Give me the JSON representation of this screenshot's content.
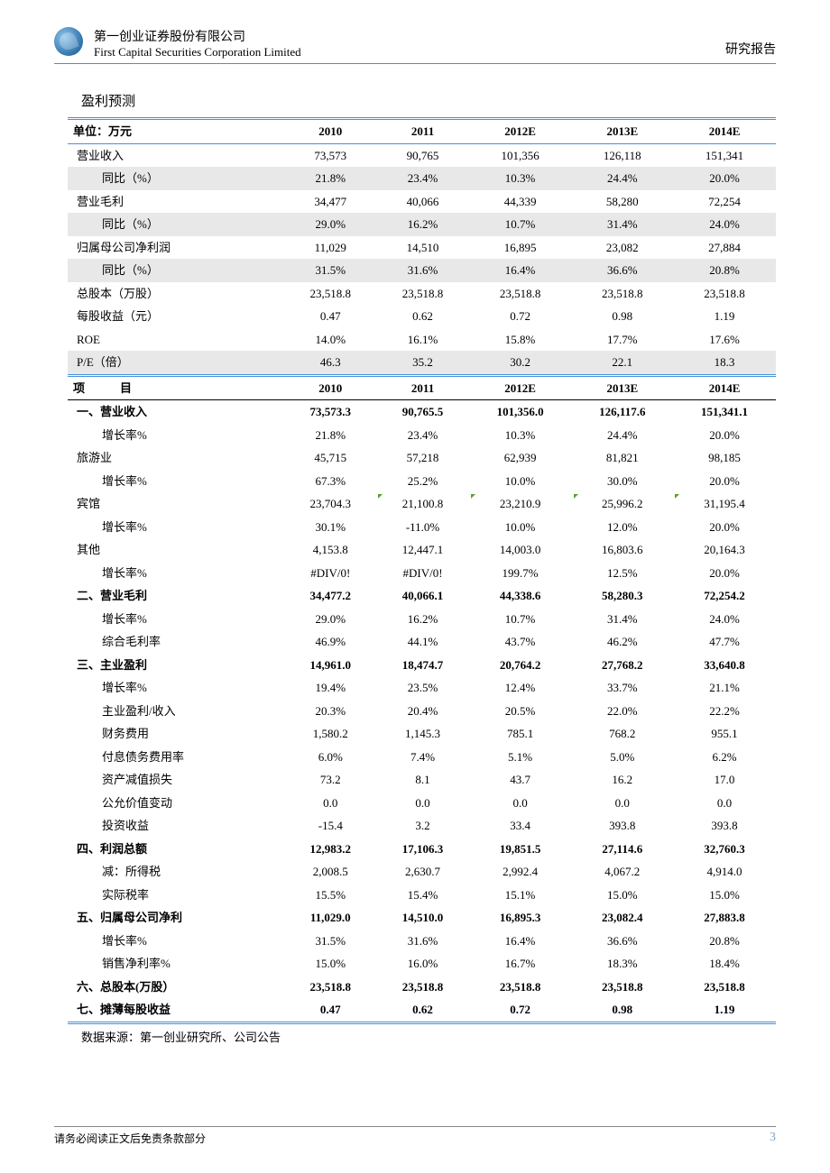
{
  "header": {
    "company_cn": "第一创业证券股份有限公司",
    "company_en": "First Capital Securities Corporation Limited",
    "report_label": "研究报告"
  },
  "section_title": "盈利预测",
  "years": [
    "2010",
    "2011",
    "2012E",
    "2013E",
    "2014E"
  ],
  "unit_label": "单位：万元",
  "item_label": "项　　　目",
  "t1_rows": [
    {
      "label": "营业收入",
      "vals": [
        "73,573",
        "90,765",
        "101,356",
        "126,118",
        "151,341"
      ],
      "shade": false,
      "indent": false
    },
    {
      "label": "同比（%）",
      "vals": [
        "21.8%",
        "23.4%",
        "10.3%",
        "24.4%",
        "20.0%"
      ],
      "shade": true,
      "indent": true
    },
    {
      "label": "营业毛利",
      "vals": [
        "34,477",
        "40,066",
        "44,339",
        "58,280",
        "72,254"
      ],
      "shade": false,
      "indent": false
    },
    {
      "label": "同比（%）",
      "vals": [
        "29.0%",
        "16.2%",
        "10.7%",
        "31.4%",
        "24.0%"
      ],
      "shade": true,
      "indent": true
    },
    {
      "label": "归属母公司净利润",
      "vals": [
        "11,029",
        "14,510",
        "16,895",
        "23,082",
        "27,884"
      ],
      "shade": false,
      "indent": false
    },
    {
      "label": "同比（%）",
      "vals": [
        "31.5%",
        "31.6%",
        "16.4%",
        "36.6%",
        "20.8%"
      ],
      "shade": true,
      "indent": true
    },
    {
      "label": "总股本（万股）",
      "vals": [
        "23,518.8",
        "23,518.8",
        "23,518.8",
        "23,518.8",
        "23,518.8"
      ],
      "shade": false,
      "indent": false
    },
    {
      "label": "每股收益（元）",
      "vals": [
        "0.47",
        "0.62",
        "0.72",
        "0.98",
        "1.19"
      ],
      "shade": false,
      "indent": false
    },
    {
      "label": "ROE",
      "vals": [
        "14.0%",
        "16.1%",
        "15.8%",
        "17.7%",
        "17.6%"
      ],
      "shade": false,
      "indent": false
    },
    {
      "label": "P/E（倍）",
      "vals": [
        "46.3",
        "35.2",
        "30.2",
        "22.1",
        "18.3"
      ],
      "shade": true,
      "indent": false
    }
  ],
  "t2_rows": [
    {
      "label": "一、营业收入",
      "vals": [
        "73,573.3",
        "90,765.5",
        "101,356.0",
        "126,117.6",
        "151,341.1"
      ],
      "bold": true,
      "indent": false
    },
    {
      "label": "增长率%",
      "vals": [
        "21.8%",
        "23.4%",
        "10.3%",
        "24.4%",
        "20.0%"
      ],
      "bold": false,
      "indent": true
    },
    {
      "label": "旅游业",
      "vals": [
        "45,715",
        "57,218",
        "62,939",
        "81,821",
        "98,185"
      ],
      "bold": false,
      "indent": false
    },
    {
      "label": "增长率%",
      "vals": [
        "67.3%",
        "25.2%",
        "10.0%",
        "30.0%",
        "20.0%"
      ],
      "bold": false,
      "indent": true
    },
    {
      "label": "宾馆",
      "vals": [
        "23,704.3",
        "21,100.8",
        "23,210.9",
        "25,996.2",
        "31,195.4"
      ],
      "bold": false,
      "indent": false,
      "mark": true
    },
    {
      "label": "增长率%",
      "vals": [
        "30.1%",
        "-11.0%",
        "10.0%",
        "12.0%",
        "20.0%"
      ],
      "bold": false,
      "indent": true
    },
    {
      "label": "其他",
      "vals": [
        "4,153.8",
        "12,447.1",
        "14,003.0",
        "16,803.6",
        "20,164.3"
      ],
      "bold": false,
      "indent": false
    },
    {
      "label": "增长率%",
      "vals": [
        "#DIV/0!",
        "#DIV/0!",
        "199.7%",
        "12.5%",
        "20.0%"
      ],
      "bold": false,
      "indent": true
    },
    {
      "label": "二、营业毛利",
      "vals": [
        "34,477.2",
        "40,066.1",
        "44,338.6",
        "58,280.3",
        "72,254.2"
      ],
      "bold": true,
      "indent": false
    },
    {
      "label": "增长率%",
      "vals": [
        "29.0%",
        "16.2%",
        "10.7%",
        "31.4%",
        "24.0%"
      ],
      "bold": false,
      "indent": true
    },
    {
      "label": "综合毛利率",
      "vals": [
        "46.9%",
        "44.1%",
        "43.7%",
        "46.2%",
        "47.7%"
      ],
      "bold": false,
      "indent": true
    },
    {
      "label": "三、主业盈利",
      "vals": [
        "14,961.0",
        "18,474.7",
        "20,764.2",
        "27,768.2",
        "33,640.8"
      ],
      "bold": true,
      "indent": false
    },
    {
      "label": "增长率%",
      "vals": [
        "19.4%",
        "23.5%",
        "12.4%",
        "33.7%",
        "21.1%"
      ],
      "bold": false,
      "indent": true
    },
    {
      "label": "主业盈利/收入",
      "vals": [
        "20.3%",
        "20.4%",
        "20.5%",
        "22.0%",
        "22.2%"
      ],
      "bold": false,
      "indent": true
    },
    {
      "label": "财务费用",
      "vals": [
        "1,580.2",
        "1,145.3",
        "785.1",
        "768.2",
        "955.1"
      ],
      "bold": false,
      "indent": true
    },
    {
      "label": "付息债务费用率",
      "vals": [
        "6.0%",
        "7.4%",
        "5.1%",
        "5.0%",
        "6.2%"
      ],
      "bold": false,
      "indent": true
    },
    {
      "label": "资产减值损失",
      "vals": [
        "73.2",
        "8.1",
        "43.7",
        "16.2",
        "17.0"
      ],
      "bold": false,
      "indent": true
    },
    {
      "label": "公允价值变动",
      "vals": [
        "0.0",
        "0.0",
        "0.0",
        "0.0",
        "0.0"
      ],
      "bold": false,
      "indent": true
    },
    {
      "label": "投资收益",
      "vals": [
        "-15.4",
        "3.2",
        "33.4",
        "393.8",
        "393.8"
      ],
      "bold": false,
      "indent": true
    },
    {
      "label": "四、利润总额",
      "vals": [
        "12,983.2",
        "17,106.3",
        "19,851.5",
        "27,114.6",
        "32,760.3"
      ],
      "bold": true,
      "indent": false
    },
    {
      "label": "减：所得税",
      "vals": [
        "2,008.5",
        "2,630.7",
        "2,992.4",
        "4,067.2",
        "4,914.0"
      ],
      "bold": false,
      "indent": true
    },
    {
      "label": "实际税率",
      "vals": [
        "15.5%",
        "15.4%",
        "15.1%",
        "15.0%",
        "15.0%"
      ],
      "bold": false,
      "indent": true
    },
    {
      "label": "五、归属母公司净利",
      "vals": [
        "11,029.0",
        "14,510.0",
        "16,895.3",
        "23,082.4",
        "27,883.8"
      ],
      "bold": true,
      "indent": false
    },
    {
      "label": "增长率%",
      "vals": [
        "31.5%",
        "31.6%",
        "16.4%",
        "36.6%",
        "20.8%"
      ],
      "bold": false,
      "indent": true
    },
    {
      "label": "销售净利率%",
      "vals": [
        "15.0%",
        "16.0%",
        "16.7%",
        "18.3%",
        "18.4%"
      ],
      "bold": false,
      "indent": true
    },
    {
      "label": "六、总股本(万股）",
      "vals": [
        "23,518.8",
        "23,518.8",
        "23,518.8",
        "23,518.8",
        "23,518.8"
      ],
      "bold": true,
      "indent": false
    },
    {
      "label": "七、摊薄每股收益",
      "vals": [
        "0.47",
        "0.62",
        "0.72",
        "0.98",
        "1.19"
      ],
      "bold": true,
      "indent": false
    }
  ],
  "source": "数据来源：第一创业研究所、公司公告",
  "footer": {
    "disclaimer": "请务必阅读正文后免责条款部分",
    "page": "3"
  },
  "colors": {
    "rule_blue": "#4a90d9",
    "shade": "#e8e8e8",
    "page_num": "#7aa5c9",
    "mark_green": "#5aa02c"
  }
}
